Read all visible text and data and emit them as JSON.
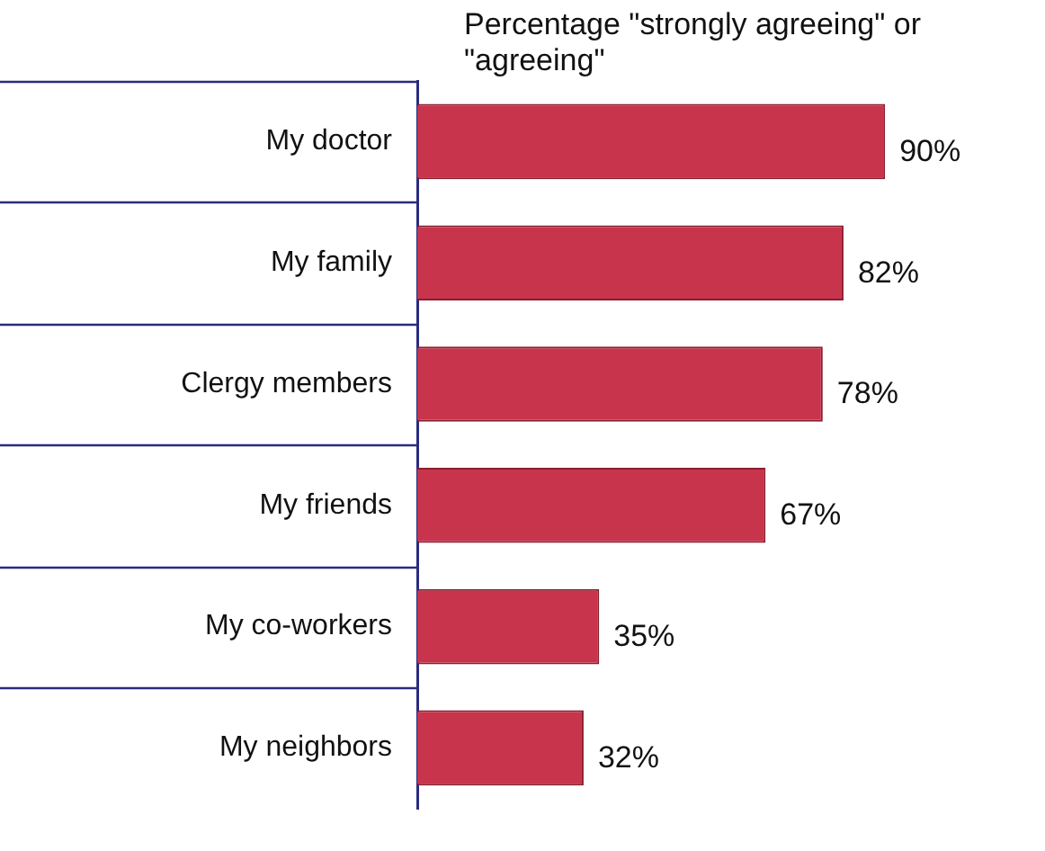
{
  "chart_data": {
    "type": "bar",
    "orientation": "horizontal",
    "title": "Percentage \"strongly agreeing\" or \"agreeing\"",
    "categories": [
      "My doctor",
      "My family",
      "Clergy members",
      "My friends",
      "My co-workers",
      "My neighbors"
    ],
    "values": [
      90,
      82,
      78,
      67,
      35,
      32
    ],
    "value_labels": [
      "90%",
      "82%",
      "78%",
      "67%",
      "35%",
      "32%"
    ],
    "color": "#c8344c",
    "legend": false
  }
}
